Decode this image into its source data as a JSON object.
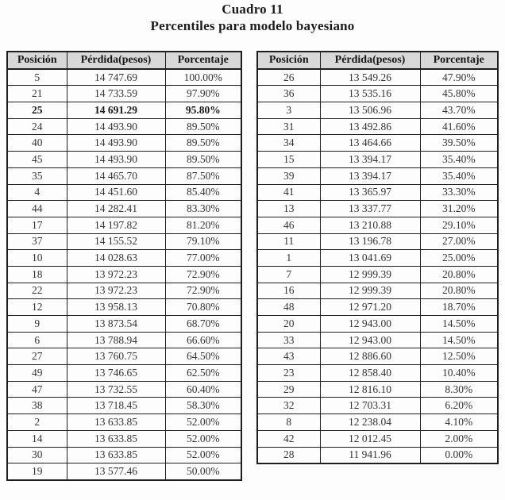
{
  "title": {
    "line1": "Cuadro 11",
    "line2": "Percentiles para modelo bayesiano"
  },
  "columns": [
    "Posición",
    "Pérdida(pesos)",
    "Porcentaje"
  ],
  "colors": {
    "header_bg": "#d8d8d8",
    "border": "#1e1e1e",
    "text": "#333333"
  },
  "tables": [
    {
      "name": "left",
      "bold_rows": [
        2
      ],
      "rows": [
        [
          "5",
          "14 747.69",
          "100.00%"
        ],
        [
          "21",
          "14 733.59",
          "97.90%"
        ],
        [
          "25",
          "14 691.29",
          "95.80%"
        ],
        [
          "24",
          "14 493.90",
          "89.50%"
        ],
        [
          "40",
          "14 493.90",
          "89.50%"
        ],
        [
          "45",
          "14 493.90",
          "89.50%"
        ],
        [
          "35",
          "14 465.70",
          "87.50%"
        ],
        [
          "4",
          "14 451.60",
          "85.40%"
        ],
        [
          "44",
          "14 282.41",
          "83.30%"
        ],
        [
          "17",
          "14 197.82",
          "81.20%"
        ],
        [
          "37",
          "14 155.52",
          "79.10%"
        ],
        [
          "10",
          "14 028.63",
          "77.00%"
        ],
        [
          "18",
          "13 972.23",
          "72.90%"
        ],
        [
          "22",
          "13 972.23",
          "72.90%"
        ],
        [
          "12",
          "13 958.13",
          "70.80%"
        ],
        [
          "9",
          "13 873.54",
          "68.70%"
        ],
        [
          "6",
          "13 788.94",
          "66.60%"
        ],
        [
          "27",
          "13 760.75",
          "64.50%"
        ],
        [
          "49",
          "13 746.65",
          "62.50%"
        ],
        [
          "47",
          "13 732.55",
          "60.40%"
        ],
        [
          "38",
          "13 718.45",
          "58.30%"
        ],
        [
          "2",
          "13 633.85",
          "52.00%"
        ],
        [
          "14",
          "13 633.85",
          "52.00%"
        ],
        [
          "30",
          "13 633.85",
          "52.00%"
        ],
        [
          "19",
          "13 577.46",
          "50.00%"
        ]
      ]
    },
    {
      "name": "right",
      "bold_rows": [],
      "rows": [
        [
          "26",
          "13 549.26",
          "47.90%"
        ],
        [
          "36",
          "13 535.16",
          "45.80%"
        ],
        [
          "3",
          "13 506.96",
          "43.70%"
        ],
        [
          "31",
          "13 492.86",
          "41.60%"
        ],
        [
          "34",
          "13 464.66",
          "39.50%"
        ],
        [
          "15",
          "13 394.17",
          "35.40%"
        ],
        [
          "39",
          "13 394.17",
          "35.40%"
        ],
        [
          "41",
          "13 365.97",
          "33.30%"
        ],
        [
          "13",
          "13 337.77",
          "31.20%"
        ],
        [
          "46",
          "13 210.88",
          "29.10%"
        ],
        [
          "11",
          "13 196.78",
          "27.00%"
        ],
        [
          "1",
          "13 041.69",
          "25.00%"
        ],
        [
          "7",
          "12 999.39",
          "20.80%"
        ],
        [
          "16",
          "12 999.39",
          "20.80%"
        ],
        [
          "48",
          "12 971.20",
          "18.70%"
        ],
        [
          "20",
          "12 943.00",
          "14.50%"
        ],
        [
          "33",
          "12 943.00",
          "14.50%"
        ],
        [
          "43",
          "12 886.60",
          "12.50%"
        ],
        [
          "23",
          "12 858.40",
          "10.40%"
        ],
        [
          "29",
          "12 816.10",
          "8.30%"
        ],
        [
          "32",
          "12 703.31",
          "6.20%"
        ],
        [
          "8",
          "12 238.04",
          "4.10%"
        ],
        [
          "42",
          "12 012.45",
          "2.00%"
        ],
        [
          "28",
          "11 941.96",
          "0.00%"
        ]
      ]
    }
  ]
}
